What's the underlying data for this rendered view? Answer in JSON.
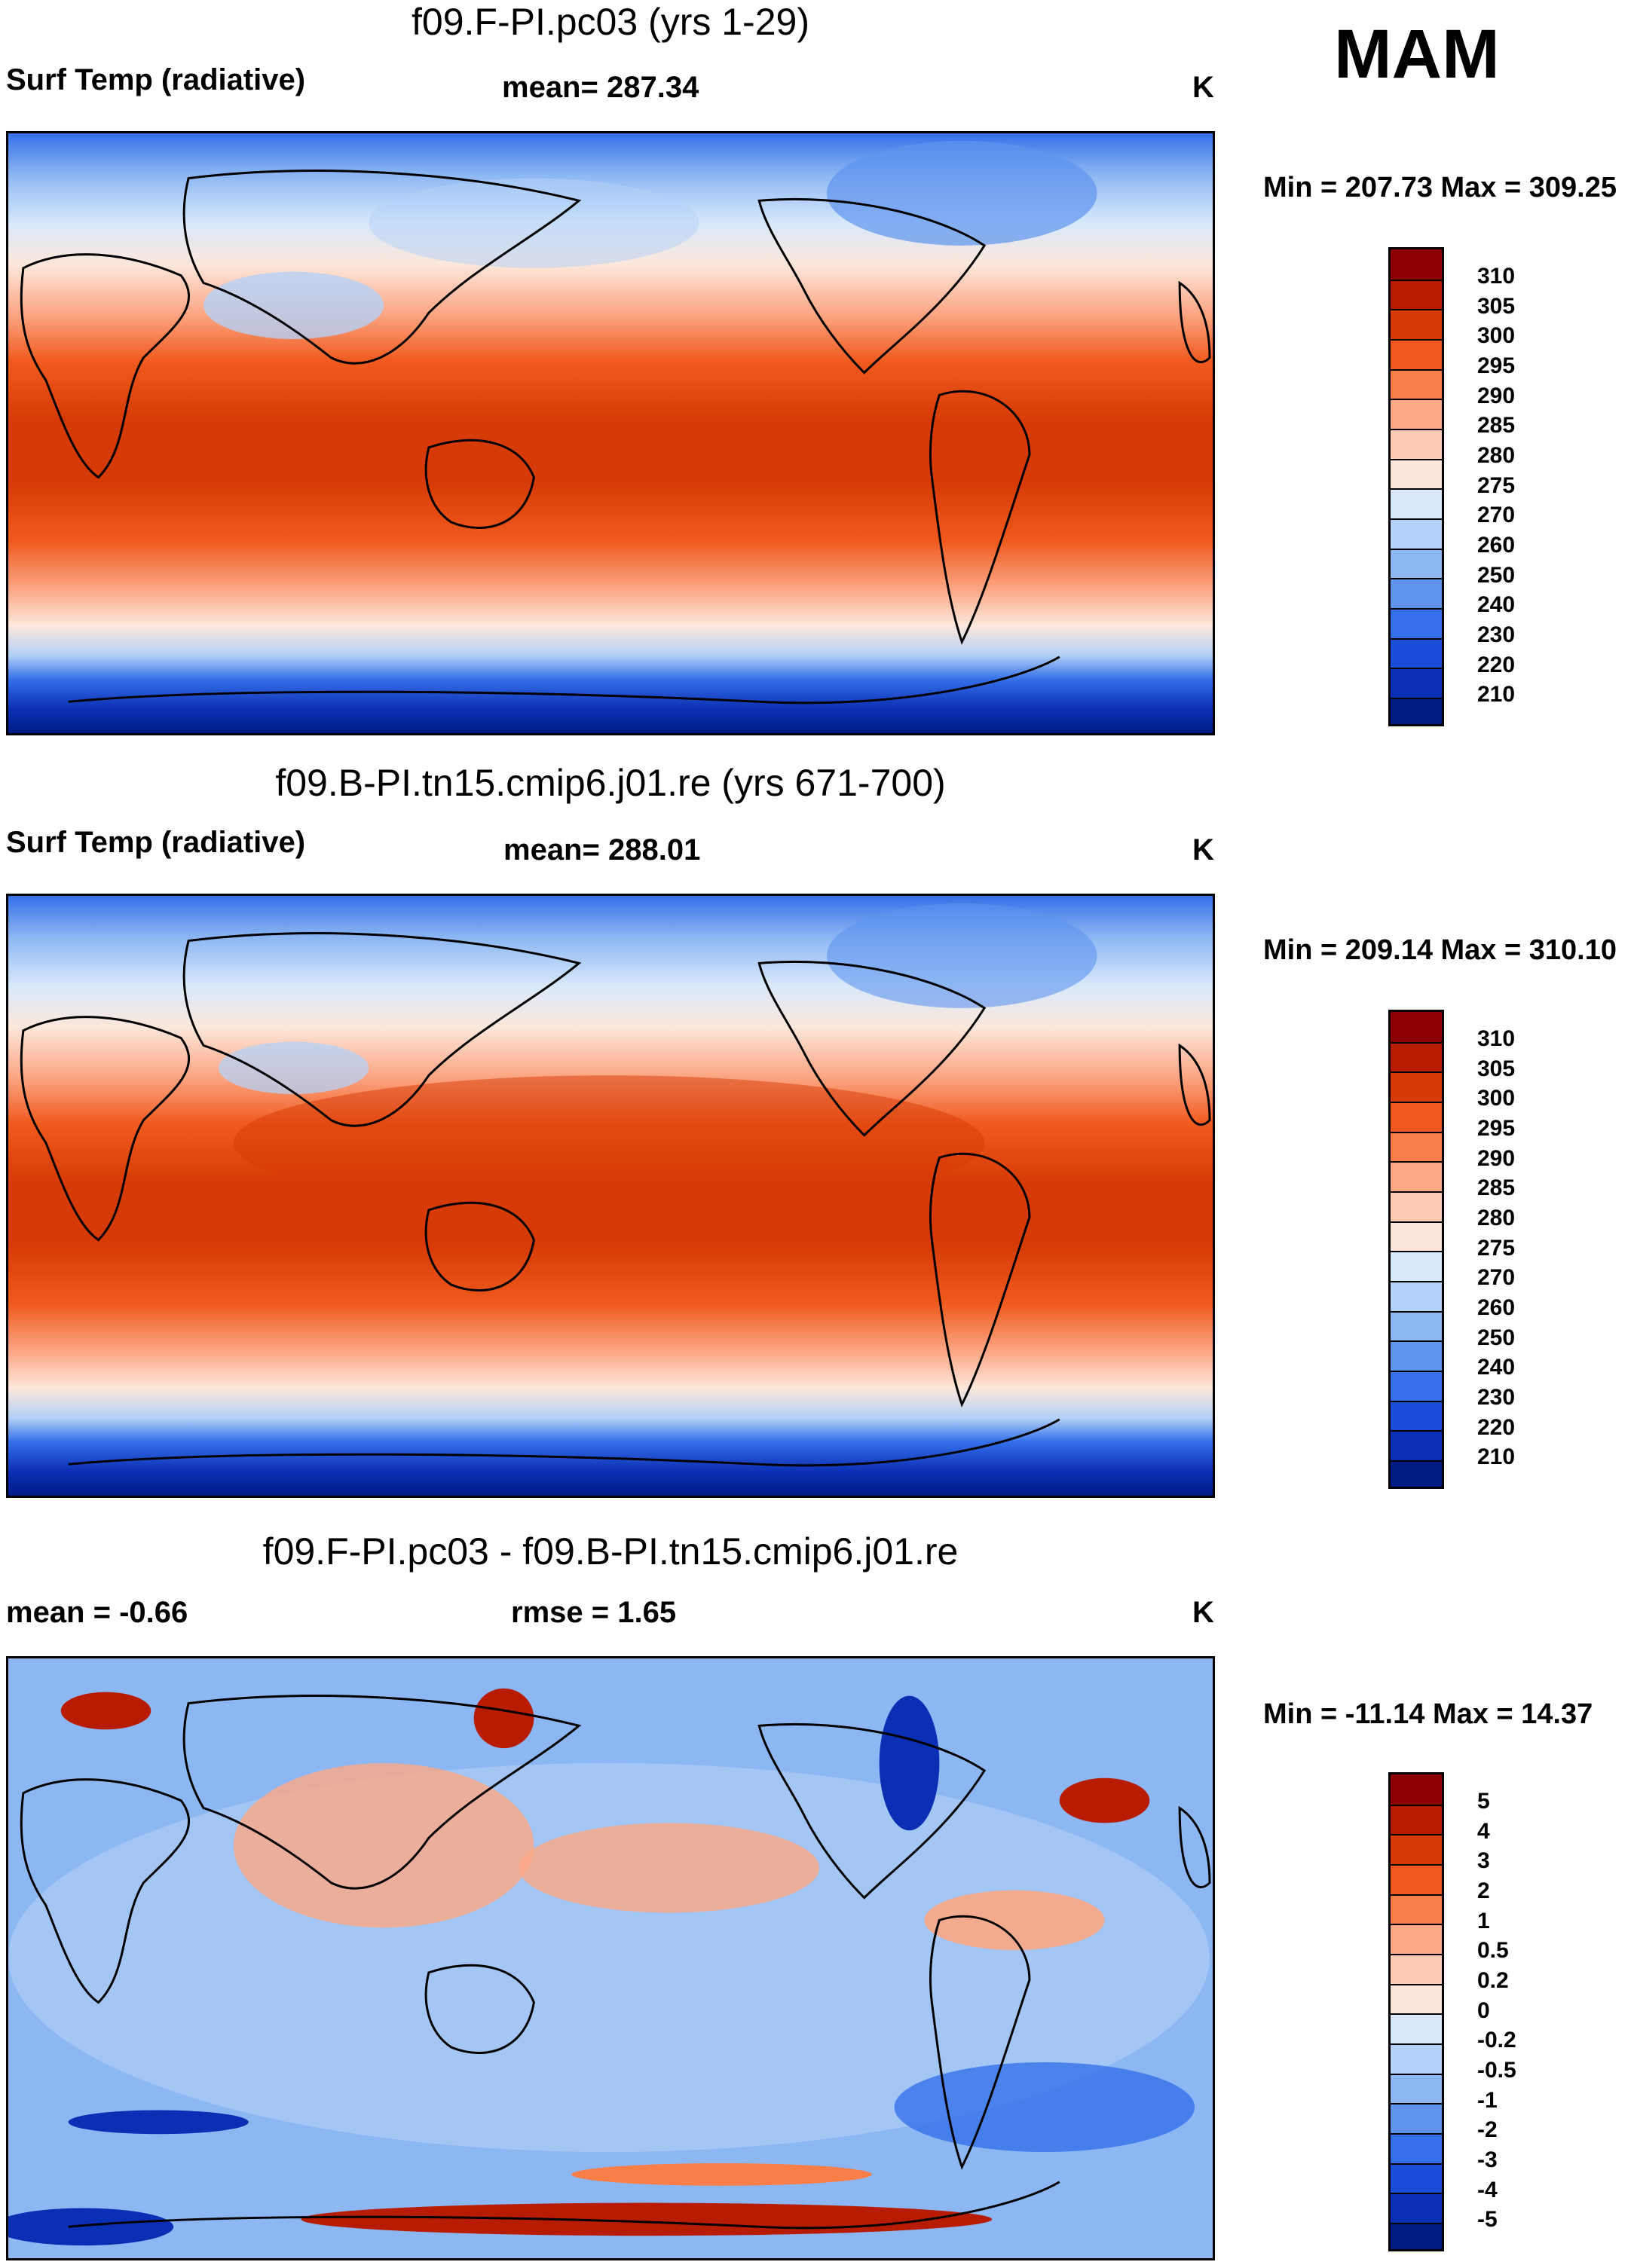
{
  "season": "MAM",
  "units": "K",
  "panels": [
    {
      "title": "f09.F-PI.pc03 (yrs 1-29)",
      "left_label": "Surf Temp (radiative)",
      "center_label": "mean= 287.34",
      "units": "K",
      "minmax": "Min = 207.73 Max = 309.25",
      "map_name": "temperature-map-1",
      "colorbar": {
        "labels": [
          "310",
          "305",
          "300",
          "295",
          "290",
          "285",
          "280",
          "275",
          "270",
          "260",
          "250",
          "240",
          "230",
          "220",
          "210"
        ],
        "colors": [
          "#8b0000",
          "#b81c00",
          "#d63a06",
          "#f05a1e",
          "#fa7e48",
          "#fca785",
          "#fdcab2",
          "#fde7da",
          "#d8e9fb",
          "#b4d1f7",
          "#8db7f3",
          "#5e94ee",
          "#3570ea",
          "#1a4ed8",
          "#0b2fb4",
          "#001c85"
        ]
      }
    },
    {
      "title": "f09.B-PI.tn15.cmip6.j01.re (yrs 671-700)",
      "left_label": "Surf Temp (radiative)",
      "center_label": "mean= 288.01",
      "units": "K",
      "minmax": "Min = 209.14 Max = 310.10",
      "map_name": "temperature-map-2",
      "colorbar": {
        "labels": [
          "310",
          "305",
          "300",
          "295",
          "290",
          "285",
          "280",
          "275",
          "270",
          "260",
          "250",
          "240",
          "230",
          "220",
          "210"
        ],
        "colors": [
          "#8b0000",
          "#b81c00",
          "#d63a06",
          "#f05a1e",
          "#fa7e48",
          "#fca785",
          "#fdcab2",
          "#fde7da",
          "#d8e9fb",
          "#b4d1f7",
          "#8db7f3",
          "#5e94ee",
          "#3570ea",
          "#1a4ed8",
          "#0b2fb4",
          "#001c85"
        ]
      }
    },
    {
      "title": "f09.F-PI.pc03 - f09.B-PI.tn15.cmip6.j01.re",
      "left_label": "mean =  -0.66",
      "center_label": "rmse =   1.65",
      "units": "K",
      "minmax": "Min = -11.14 Max =  14.37",
      "map_name": "difference-map",
      "colorbar": {
        "labels": [
          "5",
          "4",
          "3",
          "2",
          "1",
          "0.5",
          "0.2",
          "0",
          "-0.2",
          "-0.5",
          "-1",
          "-2",
          "-3",
          "-4",
          "-5"
        ],
        "colors": [
          "#8b0000",
          "#b81c00",
          "#d63a06",
          "#f05a1e",
          "#fa7e48",
          "#fca785",
          "#fdcab2",
          "#fde7da",
          "#d8e9fb",
          "#b4d1f7",
          "#8db7f3",
          "#5e94ee",
          "#3570ea",
          "#1a4ed8",
          "#0b2fb4",
          "#001c85"
        ]
      }
    }
  ]
}
